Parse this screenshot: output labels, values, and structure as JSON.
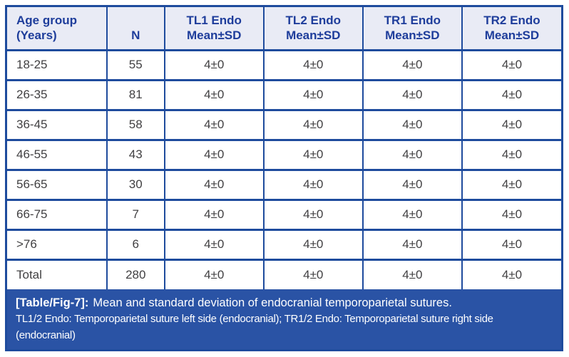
{
  "colors": {
    "border_blue": "#1e4b9d",
    "caption_bg": "#2a53a5",
    "header_bg": "#e9ebf5",
    "header_text": "#1e3d9b",
    "body_text": "#414042",
    "caption_text": "#ffffff"
  },
  "table": {
    "header": [
      {
        "line1": "Age group",
        "line2": "(Years)"
      },
      {
        "line1": "",
        "line2": "N"
      },
      {
        "line1": "TL1 Endo",
        "line2": "Mean±SD"
      },
      {
        "line1": "TL2 Endo",
        "line2": "Mean±SD"
      },
      {
        "line1": "TR1 Endo",
        "line2": "Mean±SD"
      },
      {
        "line1": "TR2 Endo",
        "line2": "Mean±SD"
      }
    ],
    "rows": [
      {
        "age_group": "18-25",
        "n": "55",
        "tl1": "4±0",
        "tl2": "4±0",
        "tr1": "4±0",
        "tr2": "4±0"
      },
      {
        "age_group": "26-35",
        "n": "81",
        "tl1": "4±0",
        "tl2": "4±0",
        "tr1": "4±0",
        "tr2": "4±0"
      },
      {
        "age_group": "36-45",
        "n": "58",
        "tl1": "4±0",
        "tl2": "4±0",
        "tr1": "4±0",
        "tr2": "4±0"
      },
      {
        "age_group": "46-55",
        "n": "43",
        "tl1": "4±0",
        "tl2": "4±0",
        "tr1": "4±0",
        "tr2": "4±0"
      },
      {
        "age_group": "56-65",
        "n": "30",
        "tl1": "4±0",
        "tl2": "4±0",
        "tr1": "4±0",
        "tr2": "4±0"
      },
      {
        "age_group": "66-75",
        "n": "7",
        "tl1": "4±0",
        "tl2": "4±0",
        "tr1": "4±0",
        "tr2": "4±0"
      },
      {
        "age_group": ">76",
        "n": "6",
        "tl1": "4±0",
        "tl2": "4±0",
        "tr1": "4±0",
        "tr2": "4±0"
      },
      {
        "age_group": "Total",
        "n": "280",
        "tl1": "4±0",
        "tl2": "4±0",
        "tr1": "4±0",
        "tr2": "4±0"
      }
    ]
  },
  "caption": {
    "label": "[Table/Fig-7]:",
    "title": "Mean and standard deviation of endocranial temporoparietal sutures.",
    "footnote": "TL1/2 Endo: Temporoparietal suture left side (endocranial); TR1/2 Endo: Temporoparietal suture right side (endocranial)"
  }
}
